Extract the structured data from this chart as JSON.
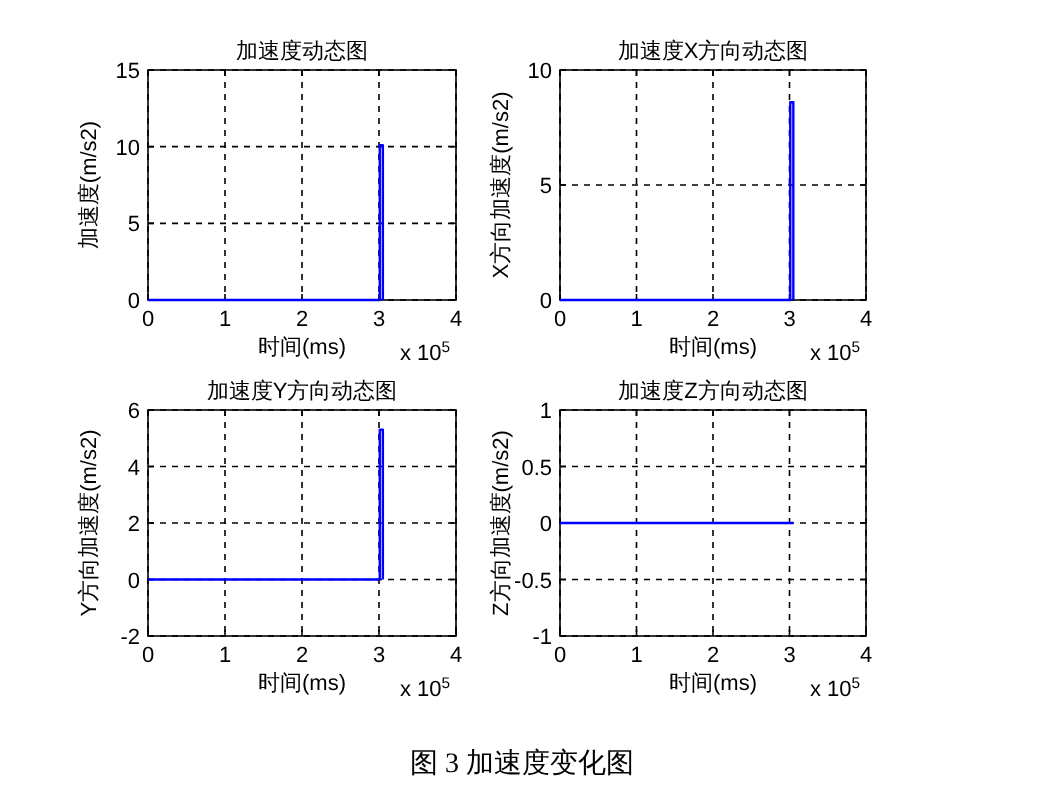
{
  "chart_data": [
    {
      "type": "line",
      "title": "加速度动态图",
      "xlabel": "时间(ms)",
      "ylabel": "加速度(m/s2)",
      "x": [
        0,
        3.01,
        3.01,
        3.05,
        3.05
      ],
      "series": [
        {
          "color": "#0000ff",
          "values": [
            0,
            0,
            10.1,
            10.1,
            0
          ]
        }
      ],
      "xlim": [
        0,
        4
      ],
      "xticks": [
        0,
        1,
        2,
        3,
        4
      ],
      "ylim": [
        0,
        15
      ],
      "yticks": [
        0,
        5,
        10,
        15
      ],
      "grid": true,
      "annotations": [
        "x 10$^{5}$"
      ]
    },
    {
      "type": "line",
      "title": "加速度X方向动态图",
      "xlabel": "时间(ms)",
      "ylabel": "X方向加速度(m/s2)",
      "x": [
        0,
        3.01,
        3.01,
        3.05,
        3.05
      ],
      "series": [
        {
          "color": "#0000ff",
          "values": [
            0,
            0,
            8.6,
            8.6,
            0
          ]
        }
      ],
      "xlim": [
        0,
        4
      ],
      "xticks": [
        0,
        1,
        2,
        3,
        4
      ],
      "ylim": [
        0,
        10
      ],
      "yticks": [
        0,
        5,
        10
      ],
      "grid": true,
      "annotations": [
        "x 10$^{5}$"
      ]
    },
    {
      "type": "line",
      "title": "加速度Y方向动态图",
      "xlabel": "时间(ms)",
      "ylabel": "Y方向加速度(m/s2)",
      "x": [
        0,
        3.01,
        3.01,
        3.05,
        3.05
      ],
      "series": [
        {
          "color": "#0000ff",
          "values": [
            0,
            0,
            5.3,
            5.3,
            0
          ]
        }
      ],
      "xlim": [
        0,
        4
      ],
      "xticks": [
        0,
        1,
        2,
        3,
        4
      ],
      "ylim": [
        -2,
        6
      ],
      "yticks": [
        -2,
        0,
        2,
        4,
        6
      ],
      "grid": true,
      "annotations": [
        "x 10$^{5}$"
      ]
    },
    {
      "type": "line",
      "title": "加速度Z方向动态图",
      "xlabel": "时间(ms)",
      "ylabel": "Z方向加速度(m/s2)",
      "x": [
        0,
        3.05
      ],
      "series": [
        {
          "color": "#0000ff",
          "values": [
            0,
            0
          ]
        }
      ],
      "xlim": [
        0,
        4
      ],
      "xticks": [
        0,
        1,
        2,
        3,
        4
      ],
      "ylim": [
        -1,
        1
      ],
      "yticks": [
        -1,
        -0.5,
        0,
        0.5,
        1
      ],
      "grid": true,
      "annotations": [
        "x 10$^{5}$",
        "图 3  加速度变化图"
      ]
    }
  ]
}
